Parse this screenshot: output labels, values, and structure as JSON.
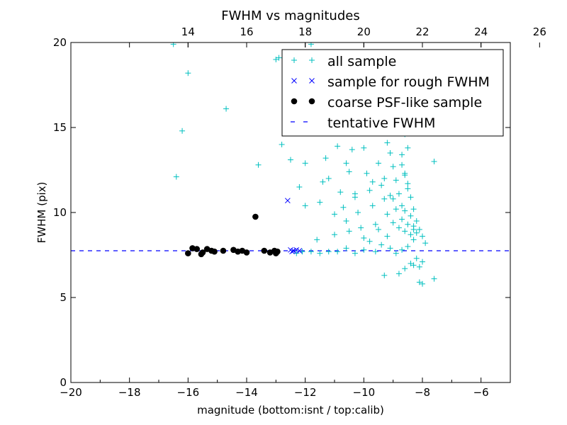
{
  "chart_data": {
    "type": "scatter",
    "title": "FWHM vs magnitudes",
    "xlabel": "magnitude (bottom:isnt / top:calib)",
    "ylabel": "FWHM (pix)",
    "xlim": [
      -20,
      -5
    ],
    "ylim": [
      0,
      20
    ],
    "x_ticks": [
      -20,
      -18,
      -16,
      -14,
      -12,
      -10,
      -8,
      -6
    ],
    "x_tick_labels": [
      "−20",
      "−18",
      "−16",
      "−14",
      "−12",
      "−10",
      "−8",
      "−6"
    ],
    "y_ticks": [
      0,
      5,
      10,
      15,
      20
    ],
    "y_tick_labels": [
      "0",
      "5",
      "10",
      "15",
      "20"
    ],
    "top_axis": {
      "offset": 30.0,
      "ticks": [
        14,
        16,
        18,
        20,
        22,
        24,
        26
      ],
      "tick_labels": [
        "14",
        "16",
        "18",
        "20",
        "22",
        "24",
        "26"
      ]
    },
    "grid": false,
    "legend_position": "top-right",
    "series": [
      {
        "name": "all sample",
        "marker": "plus",
        "color": "#00bfbf",
        "points": [
          [
            -16.5,
            19.9
          ],
          [
            -16.0,
            18.2
          ],
          [
            -16.2,
            14.8
          ],
          [
            -16.4,
            12.1
          ],
          [
            -14.7,
            16.1
          ],
          [
            -13.6,
            12.8
          ],
          [
            -13.0,
            19.0
          ],
          [
            -12.9,
            19.1
          ],
          [
            -12.8,
            14.0
          ],
          [
            -12.5,
            13.1
          ],
          [
            -12.2,
            11.5
          ],
          [
            -12.0,
            12.9
          ],
          [
            -12.0,
            10.4
          ],
          [
            -11.6,
            8.4
          ],
          [
            -11.8,
            19.9
          ],
          [
            -11.4,
            11.8
          ],
          [
            -11.3,
            13.2
          ],
          [
            -11.2,
            12.0
          ],
          [
            -11.0,
            9.9
          ],
          [
            -10.9,
            13.9
          ],
          [
            -10.8,
            11.2
          ],
          [
            -10.7,
            10.3
          ],
          [
            -10.6,
            9.5
          ],
          [
            -10.5,
            12.4
          ],
          [
            -10.4,
            13.7
          ],
          [
            -10.3,
            11.1
          ],
          [
            -10.2,
            10.0
          ],
          [
            -10.1,
            9.1
          ],
          [
            -10.0,
            13.8
          ],
          [
            -9.9,
            12.3
          ],
          [
            -9.8,
            11.3
          ],
          [
            -9.7,
            10.4
          ],
          [
            -9.6,
            9.3
          ],
          [
            -9.5,
            12.9
          ],
          [
            -9.4,
            11.6
          ],
          [
            -9.3,
            10.8
          ],
          [
            -9.2,
            9.9
          ],
          [
            -9.1,
            13.5
          ],
          [
            -9.0,
            12.7
          ],
          [
            -8.9,
            11.9
          ],
          [
            -8.8,
            11.1
          ],
          [
            -8.7,
            10.4
          ],
          [
            -8.6,
            12.3
          ],
          [
            -8.5,
            11.7
          ],
          [
            -8.4,
            10.9
          ],
          [
            -8.3,
            10.2
          ],
          [
            -8.2,
            9.5
          ],
          [
            -8.1,
            9.0
          ],
          [
            -8.0,
            8.6
          ],
          [
            -7.9,
            8.2
          ],
          [
            -7.6,
            13.0
          ],
          [
            -7.6,
            6.1
          ],
          [
            -8.0,
            5.8
          ],
          [
            -8.1,
            5.9
          ],
          [
            -9.3,
            6.3
          ],
          [
            -8.8,
            6.4
          ],
          [
            -8.6,
            6.7
          ],
          [
            -8.4,
            7.0
          ],
          [
            -8.7,
            12.8
          ],
          [
            -8.6,
            12.2
          ],
          [
            -8.5,
            11.4
          ],
          [
            -8.6,
            10.1
          ],
          [
            -8.4,
            9.8
          ],
          [
            -8.3,
            9.2
          ],
          [
            -8.2,
            8.8
          ],
          [
            -8.3,
            8.4
          ],
          [
            -8.5,
            8.0
          ],
          [
            -8.7,
            7.8
          ],
          [
            -8.9,
            7.6
          ],
          [
            -9.1,
            7.9
          ],
          [
            -9.4,
            8.1
          ],
          [
            -9.6,
            7.7
          ],
          [
            -9.8,
            8.3
          ],
          [
            -10.0,
            7.8
          ],
          [
            -10.3,
            7.6
          ],
          [
            -10.6,
            7.9
          ],
          [
            -10.9,
            7.7
          ],
          [
            -11.2,
            7.7
          ],
          [
            -11.5,
            7.6
          ],
          [
            -11.8,
            7.7
          ],
          [
            -12.1,
            7.7
          ],
          [
            -12.3,
            7.6
          ],
          [
            -11.0,
            8.7
          ],
          [
            -10.5,
            8.9
          ],
          [
            -10.0,
            8.5
          ],
          [
            -9.5,
            9.0
          ],
          [
            -9.2,
            8.6
          ],
          [
            -9.0,
            9.4
          ],
          [
            -8.8,
            9.1
          ],
          [
            -8.6,
            8.9
          ],
          [
            -8.4,
            8.7
          ],
          [
            -8.2,
            7.3
          ],
          [
            -8.0,
            7.1
          ],
          [
            -8.1,
            6.8
          ],
          [
            -8.3,
            6.9
          ],
          [
            -9.0,
            10.8
          ],
          [
            -8.9,
            10.2
          ],
          [
            -8.7,
            9.6
          ],
          [
            -8.5,
            9.3
          ],
          [
            -8.3,
            9.0
          ],
          [
            -8.6,
            14.6
          ],
          [
            -8.7,
            13.4
          ],
          [
            -8.5,
            13.8
          ],
          [
            -9.2,
            14.1
          ],
          [
            -10.6,
            12.9
          ],
          [
            -11.5,
            10.6
          ],
          [
            -10.3,
            10.9
          ],
          [
            -9.7,
            11.8
          ],
          [
            -9.3,
            12.0
          ],
          [
            -9.1,
            11.0
          ]
        ]
      },
      {
        "name": "sample for rough FWHM",
        "marker": "x",
        "color": "#0000ff",
        "points": [
          [
            -12.6,
            10.7
          ],
          [
            -12.5,
            7.8
          ],
          [
            -12.4,
            7.75
          ],
          [
            -12.3,
            7.8
          ],
          [
            -12.2,
            7.75
          ],
          [
            -12.45,
            7.7
          ]
        ]
      },
      {
        "name": "coarse PSF-like sample",
        "marker": "dot",
        "color": "#000000",
        "points": [
          [
            -13.7,
            9.75
          ],
          [
            -16.0,
            7.6
          ],
          [
            -15.85,
            7.9
          ],
          [
            -15.7,
            7.85
          ],
          [
            -15.55,
            7.55
          ],
          [
            -15.5,
            7.65
          ],
          [
            -15.35,
            7.85
          ],
          [
            -15.2,
            7.75
          ],
          [
            -15.1,
            7.7
          ],
          [
            -14.8,
            7.75
          ],
          [
            -14.45,
            7.8
          ],
          [
            -14.3,
            7.7
          ],
          [
            -14.15,
            7.75
          ],
          [
            -14.0,
            7.65
          ],
          [
            -13.4,
            7.75
          ],
          [
            -13.2,
            7.65
          ],
          [
            -13.05,
            7.75
          ],
          [
            -13.0,
            7.6
          ],
          [
            -12.95,
            7.7
          ]
        ]
      },
      {
        "name": "tentative FWHM",
        "marker": "dashed-line",
        "color": "#0000ff",
        "y": 7.75
      }
    ]
  }
}
